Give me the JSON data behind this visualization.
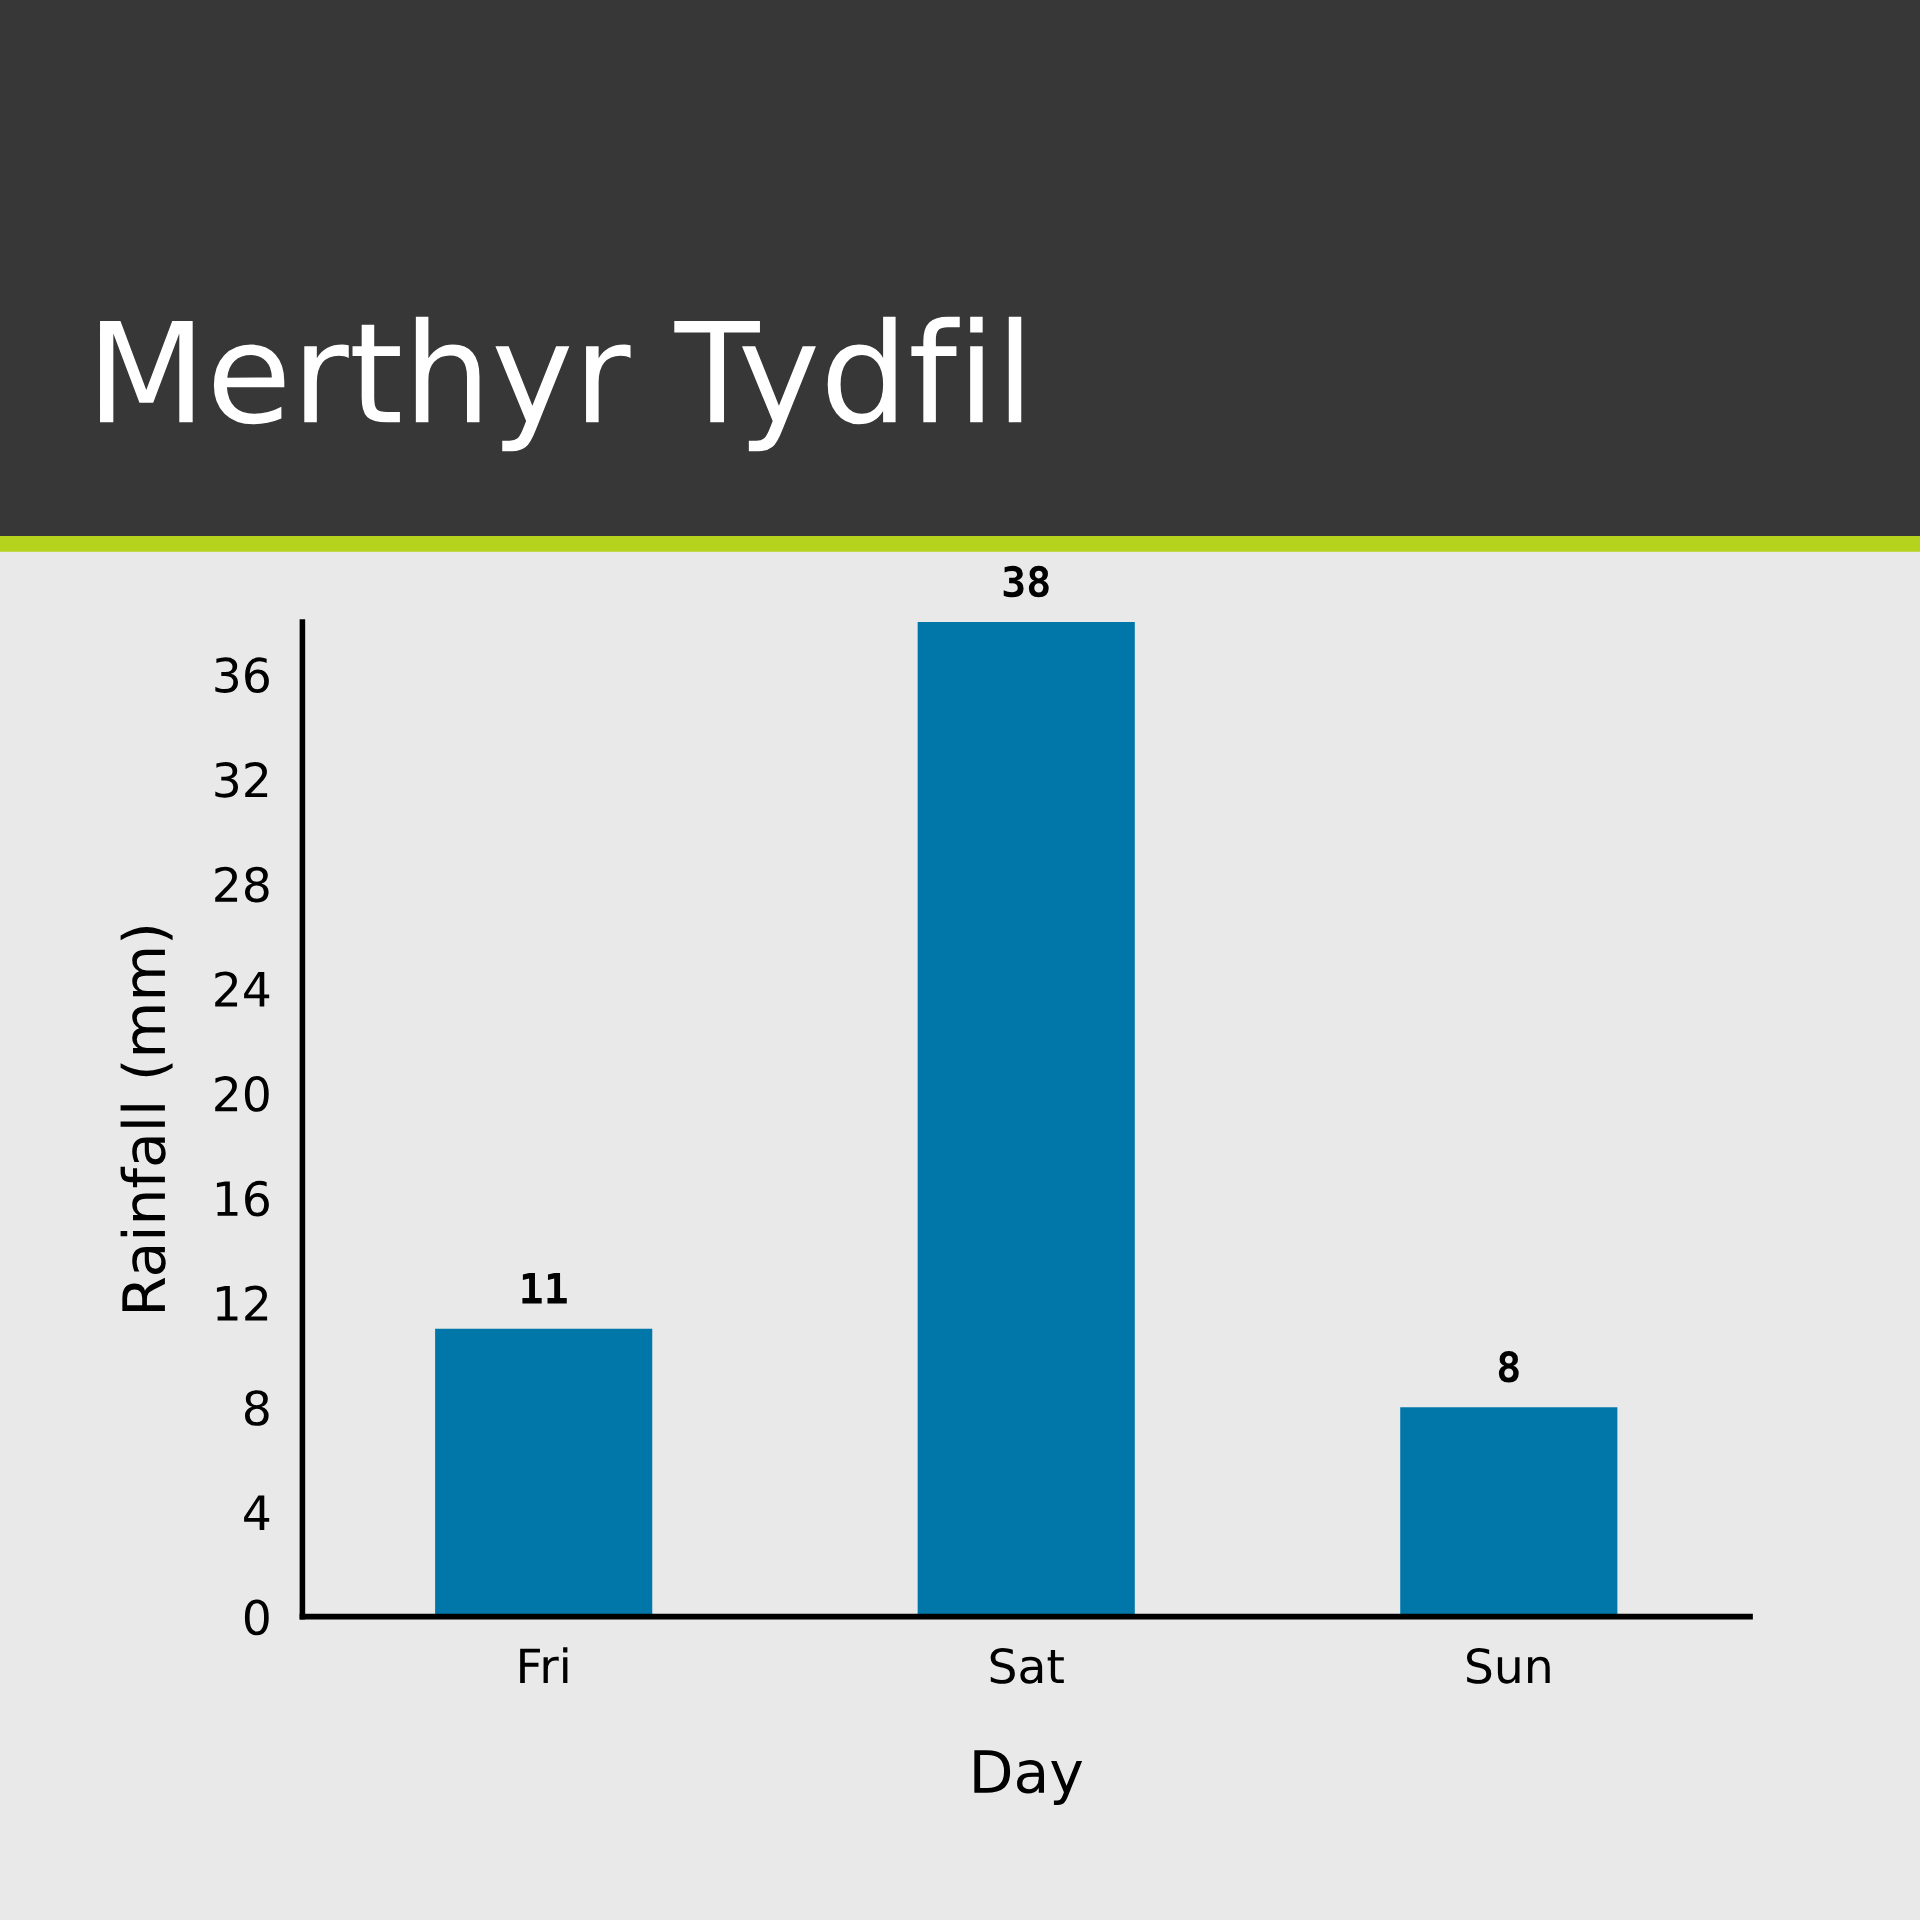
{
  "chart_data": {
    "type": "bar",
    "title": "Merthyr Tydfil",
    "xlabel": "Day",
    "ylabel": "Rainfall (mm)",
    "categories": [
      "Fri",
      "Sat",
      "Sun"
    ],
    "values": [
      11,
      38,
      8
    ],
    "color": "#0077a8",
    "ylim": [
      0,
      38
    ],
    "yticks": [
      0,
      4,
      8,
      12,
      16,
      20,
      24,
      28,
      32,
      36
    ],
    "data_labels": true,
    "grid": false,
    "legend": false
  }
}
